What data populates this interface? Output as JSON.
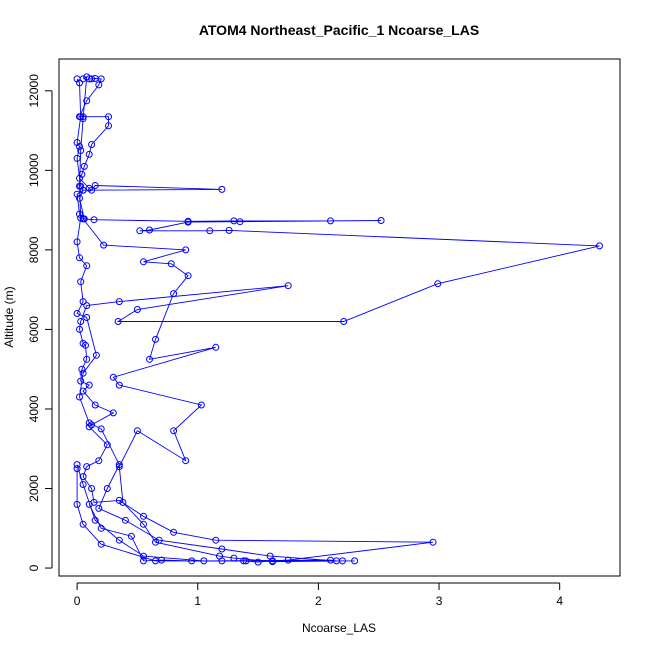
{
  "chart_data": {
    "type": "line",
    "title": "ATOM4 Northeast_Pacific_1 Ncoarse_LAS",
    "xlabel": "Ncoarse_LAS",
    "ylabel": "Altitude (m)",
    "xlim": [
      -0.15,
      4.5
    ],
    "ylim": [
      -200,
      12800
    ],
    "xticks": [
      "0",
      "1",
      "2",
      "3",
      "4"
    ],
    "yticks": [
      "0",
      "2000",
      "4000",
      "6000",
      "8000",
      "10000",
      "12000"
    ],
    "grid": false,
    "legend": "none",
    "series_color": "#0000ff",
    "series": [
      {
        "values": [
          [
            0.1,
            12300
          ],
          [
            0.12,
            12300
          ],
          [
            0.15,
            12310
          ],
          [
            0.2,
            12300
          ],
          [
            0.18,
            12150
          ],
          [
            0.08,
            11750
          ],
          [
            0.02,
            11350
          ],
          [
            0.05,
            11350
          ],
          [
            0.26,
            11350
          ],
          [
            0.26,
            11120
          ],
          [
            0.12,
            10650
          ],
          [
            0.1,
            10400
          ],
          [
            0.06,
            10100
          ],
          [
            0.04,
            9900
          ],
          [
            0.02,
            9800
          ],
          [
            0.1,
            9550
          ],
          [
            0.12,
            9500
          ],
          [
            0.15,
            9620
          ],
          [
            1.2,
            9520
          ],
          [
            0.05,
            9500
          ],
          [
            0.02,
            9300
          ],
          [
            0.06,
            8780
          ],
          [
            0.14,
            8760
          ],
          [
            0.92,
            8720
          ],
          [
            1.3,
            8730
          ],
          [
            2.1,
            8730
          ],
          [
            2.52,
            8740
          ],
          [
            1.35,
            8710
          ],
          [
            0.92,
            8700
          ],
          [
            0.6,
            8500
          ],
          [
            0.52,
            8480
          ],
          [
            1.1,
            8480
          ],
          [
            1.26,
            8490
          ],
          [
            4.33,
            8100
          ],
          [
            2.99,
            7150
          ],
          [
            2.21,
            6200
          ],
          [
            0.34,
            6200
          ],
          [
            0.5,
            6500
          ],
          [
            1.75,
            7100
          ],
          [
            0.35,
            6700
          ],
          [
            0.08,
            6600
          ],
          [
            0.03,
            6200
          ],
          [
            0.02,
            6000
          ],
          [
            0.05,
            5650
          ],
          [
            0.07,
            5600
          ],
          [
            0.08,
            5250
          ],
          [
            0.04,
            5000
          ],
          [
            0.03,
            4700
          ],
          [
            0.1,
            4600
          ],
          [
            0.05,
            4450
          ],
          [
            0.15,
            4100
          ],
          [
            0.3,
            3900
          ],
          [
            0.12,
            3600
          ],
          [
            0.1,
            3550
          ],
          [
            0.25,
            3100
          ],
          [
            0.18,
            2700
          ],
          [
            0.08,
            2550
          ],
          [
            0.05,
            2300
          ],
          [
            0.12,
            2000
          ],
          [
            0.14,
            1650
          ],
          [
            0.35,
            1700
          ],
          [
            0.55,
            1300
          ],
          [
            0.8,
            900
          ],
          [
            1.15,
            700
          ],
          [
            2.95,
            650
          ],
          [
            1.75,
            200
          ],
          [
            1.62,
            180
          ],
          [
            1.5,
            150
          ],
          [
            1.38,
            180
          ],
          [
            1.2,
            180
          ],
          [
            0.95,
            180
          ],
          [
            0.7,
            200
          ],
          [
            0.55,
            180
          ],
          [
            0.45,
            800
          ],
          [
            0.2,
            1000
          ],
          [
            0.1,
            1600
          ]
        ]
      },
      {
        "values": [
          [
            0.0,
            12300
          ],
          [
            0.02,
            12200
          ],
          [
            0.03,
            11350
          ],
          [
            0.0,
            10700
          ],
          [
            0.02,
            10600
          ],
          [
            0.0,
            10300
          ],
          [
            0.03,
            9600
          ],
          [
            0.05,
            9500
          ],
          [
            0.0,
            9400
          ],
          [
            0.02,
            8900
          ],
          [
            0.05,
            8780
          ],
          [
            0.22,
            8120
          ],
          [
            0.9,
            8000
          ],
          [
            0.55,
            7700
          ],
          [
            0.78,
            7650
          ],
          [
            0.92,
            7350
          ],
          [
            0.8,
            6900
          ],
          [
            0.65,
            5750
          ],
          [
            0.6,
            5250
          ],
          [
            1.15,
            5550
          ],
          [
            0.3,
            4800
          ],
          [
            0.35,
            4600
          ],
          [
            1.03,
            4100
          ],
          [
            0.8,
            3450
          ],
          [
            0.9,
            2700
          ],
          [
            0.5,
            3450
          ],
          [
            0.35,
            2550
          ],
          [
            0.38,
            1650
          ],
          [
            0.55,
            1100
          ],
          [
            0.65,
            650
          ],
          [
            1.18,
            300
          ],
          [
            1.3,
            250
          ],
          [
            1.62,
            160
          ],
          [
            2.2,
            180
          ],
          [
            2.3,
            180
          ],
          [
            1.4,
            180
          ],
          [
            0.65,
            180
          ],
          [
            0.2,
            600
          ],
          [
            0.05,
            1100
          ],
          [
            0.0,
            1600
          ],
          [
            0.0,
            2500
          ]
        ]
      },
      {
        "values": [
          [
            0.05,
            12300
          ],
          [
            0.08,
            12350
          ],
          [
            0.05,
            11300
          ],
          [
            0.03,
            10500
          ],
          [
            0.02,
            9600
          ],
          [
            0.03,
            8800
          ],
          [
            0.0,
            8200
          ],
          [
            0.02,
            7800
          ],
          [
            0.08,
            7600
          ],
          [
            0.03,
            7200
          ],
          [
            0.05,
            6700
          ],
          [
            0.0,
            6400
          ],
          [
            0.08,
            6300
          ],
          [
            0.16,
            5350
          ],
          [
            0.05,
            4900
          ],
          [
            0.02,
            4300
          ],
          [
            0.1,
            3650
          ],
          [
            0.2,
            3500
          ],
          [
            0.35,
            2600
          ],
          [
            0.25,
            2000
          ],
          [
            0.18,
            1500
          ],
          [
            0.4,
            1200
          ],
          [
            0.68,
            700
          ],
          [
            1.2,
            480
          ],
          [
            1.6,
            300
          ],
          [
            2.15,
            180
          ],
          [
            2.1,
            200
          ],
          [
            1.05,
            180
          ],
          [
            0.55,
            300
          ],
          [
            0.35,
            700
          ],
          [
            0.15,
            1200
          ],
          [
            0.05,
            2100
          ],
          [
            0.0,
            2600
          ]
        ]
      }
    ]
  }
}
